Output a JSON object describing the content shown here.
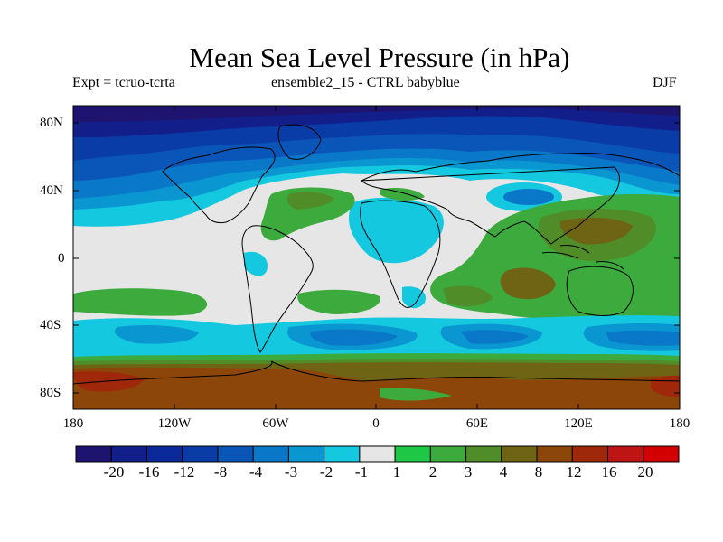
{
  "title": "Mean Sea Level Pressure (in hPa)",
  "subtitle_left": "Expt = tcruo-tcrta",
  "subtitle_center": "ensemble2_15 - CTRL babyblue",
  "subtitle_right": "DJF",
  "lat_labels": [
    "80N",
    "40N",
    "0",
    "40S",
    "80S"
  ],
  "lon_labels": [
    "180",
    "120W",
    "60W",
    "0",
    "60E",
    "120E",
    "180"
  ],
  "colorbar": {
    "labels": [
      "-20",
      "-16",
      "-12",
      "-8",
      "-4",
      "-3",
      "-2",
      "-1",
      "1",
      "2",
      "3",
      "4",
      "8",
      "12",
      "16",
      "20"
    ],
    "colors": [
      "#1e1470",
      "#121e8a",
      "#0a2a9c",
      "#0a3ca8",
      "#0a55b8",
      "#0a78c8",
      "#0a96d0",
      "#14c8e0",
      "#e6e6e6",
      "#1ec846",
      "#3caa3c",
      "#508c28",
      "#6e6414",
      "#8c460a",
      "#a0280a",
      "#be1414",
      "#d20000"
    ]
  },
  "palette": {
    "land_outline": "#000000",
    "background": "#e6e6e6"
  }
}
